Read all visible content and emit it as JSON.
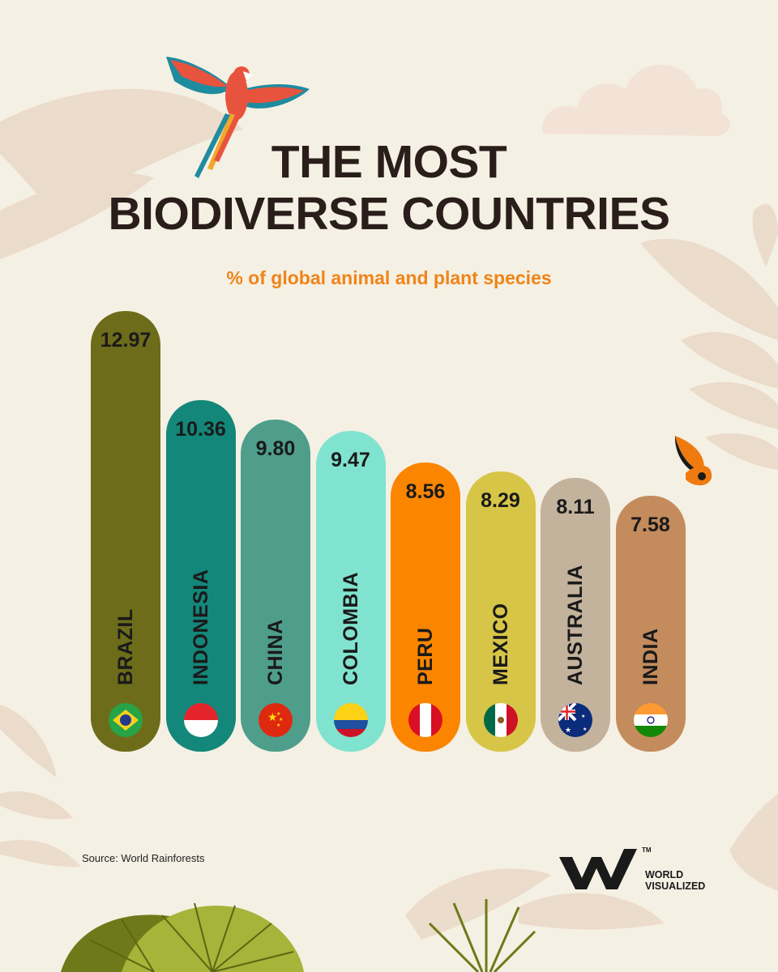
{
  "title_lines": [
    "THE MOST",
    "BIODIVERSE COUNTRIES"
  ],
  "subtitle": "% of global animal and plant species",
  "source": "Source: World Rainforests",
  "brand": {
    "line1": "WORLD",
    "line2": "VISUALIZED",
    "tm": "TM"
  },
  "colors": {
    "background": "#f5f0e4",
    "title": "#2a1e1a",
    "subtitle": "#ef8418"
  },
  "chart_data": {
    "type": "bar",
    "title": "THE MOST BIODIVERSE COUNTRIES",
    "subtitle": "% of global animal and plant species",
    "categories": [
      "BRAZIL",
      "INDONESIA",
      "CHINA",
      "COLOMBIA",
      "PERU",
      "MEXICO",
      "AUSTRALIA",
      "INDIA"
    ],
    "values": [
      12.97,
      10.36,
      9.8,
      9.47,
      8.56,
      8.29,
      8.11,
      7.58
    ],
    "value_labels": [
      "12.97",
      "10.36",
      "9.80",
      "9.47",
      "8.56",
      "8.29",
      "8.11",
      "7.58"
    ],
    "bar_colors": [
      "#6d6c1a",
      "#13877a",
      "#4e9e8b",
      "#80e3cf",
      "#fc8500",
      "#d7c547",
      "#c3b29c",
      "#c48b5c"
    ],
    "flags": [
      "brazil-flag-icon",
      "indonesia-flag-icon",
      "china-flag-icon",
      "colombia-flag-icon",
      "peru-flag-icon",
      "mexico-flag-icon",
      "australia-flag-icon",
      "india-flag-icon"
    ],
    "legend": "none",
    "grid": false
  }
}
